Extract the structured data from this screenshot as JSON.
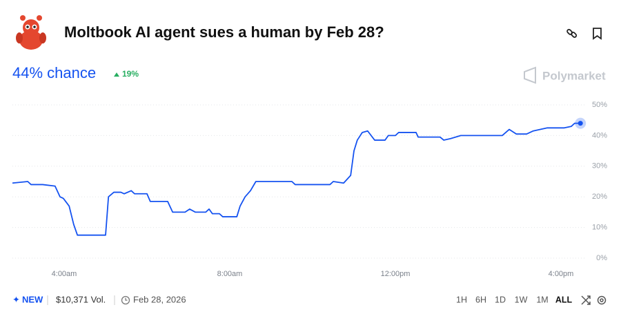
{
  "header": {
    "title": "Moltbook AI agent sues a human by Feb 28?"
  },
  "summary": {
    "chance": "44% chance",
    "change": "19%"
  },
  "brand": "Polymarket",
  "chart_data": {
    "type": "line",
    "color": "#1452f0",
    "x": [
      2.75,
      3.12,
      3.2,
      3.48,
      3.78,
      3.9,
      3.98,
      4.12,
      4.23,
      4.32,
      4.53,
      4.7,
      5.0,
      5.07,
      5.2,
      5.37,
      5.45,
      5.62,
      5.7,
      6.0,
      6.08,
      6.5,
      6.62,
      6.92,
      7.03,
      7.17,
      7.42,
      7.5,
      7.58,
      7.75,
      7.83,
      8.17,
      8.25,
      8.37,
      8.5,
      8.63,
      9.5,
      9.58,
      10.42,
      10.5,
      10.75,
      10.92,
      11.0,
      11.08,
      11.2,
      11.33,
      11.5,
      11.75,
      11.83,
      12.0,
      12.08,
      12.5,
      12.55,
      13.08,
      13.17,
      13.33,
      13.58,
      14.58,
      14.75,
      14.92,
      15.17,
      15.33,
      15.67,
      16.08,
      16.25,
      16.33,
      16.47
    ],
    "values": [
      24.5,
      25,
      24,
      24,
      23.5,
      20,
      19.5,
      17,
      11,
      7.5,
      7.5,
      7.5,
      7.5,
      20,
      21.5,
      21.5,
      21,
      22,
      21,
      21,
      18.5,
      18.5,
      15,
      15,
      16,
      15,
      15,
      16,
      14.5,
      14.5,
      13.5,
      13.5,
      17,
      20,
      22,
      25,
      25,
      24,
      24,
      25,
      24.5,
      27,
      35,
      38.5,
      41,
      41.5,
      38.5,
      38.5,
      40,
      40,
      41,
      41,
      39.5,
      39.5,
      38.5,
      39,
      40,
      40,
      42,
      40.5,
      40.5,
      41.5,
      42.5,
      42.5,
      43,
      44,
      44
    ],
    "xlim": [
      2.75,
      16.6
    ],
    "xticks": [
      {
        "value": 4,
        "label": "4:00am"
      },
      {
        "value": 8,
        "label": "8:00am"
      },
      {
        "value": 12,
        "label": "12:00pm"
      },
      {
        "value": 16,
        "label": "4:00pm"
      }
    ],
    "ylim": [
      0,
      50
    ],
    "yticks": [
      {
        "value": 0,
        "label": "0%"
      },
      {
        "value": 10,
        "label": "10%"
      },
      {
        "value": 20,
        "label": "20%"
      },
      {
        "value": 30,
        "label": "30%"
      },
      {
        "value": 40,
        "label": "40%"
      },
      {
        "value": 50,
        "label": "50%"
      }
    ],
    "grid": true
  },
  "footer": {
    "new": "NEW",
    "volume": "$10,371 Vol.",
    "date": "Feb 28, 2026",
    "ranges": [
      "1H",
      "6H",
      "1D",
      "1W",
      "1M",
      "ALL"
    ]
  }
}
